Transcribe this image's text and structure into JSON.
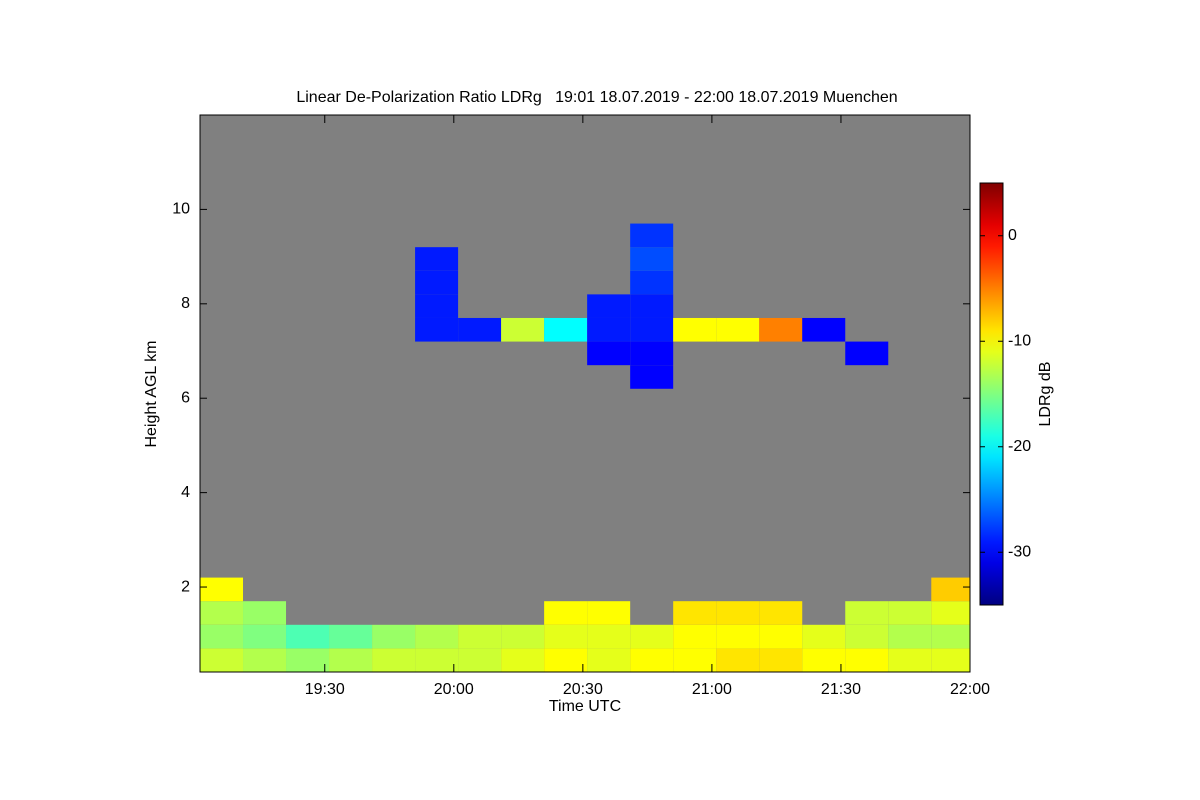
{
  "chart_data": {
    "type": "heatmap",
    "title": "Linear De-Polarization Ratio LDRg   19:01 18.07.2019 - 22:00 18.07.2019 Muenchen",
    "xlabel": "Time UTC",
    "ylabel": "Height AGL km",
    "colorbar_label": "LDRg dB",
    "colormap": "jet",
    "background": "#808080",
    "xlim": [
      "19:01",
      "22:00"
    ],
    "xticks": [
      "19:30",
      "20:00",
      "20:30",
      "21:00",
      "21:30",
      "22:00"
    ],
    "ylim": [
      0.2,
      12
    ],
    "yticks": [
      2,
      4,
      6,
      8,
      10
    ],
    "clim": [
      -35,
      5
    ],
    "cticks": [
      0,
      -10,
      -20,
      -30
    ],
    "x": [
      "19:01",
      "19:11",
      "19:21",
      "19:31",
      "19:41",
      "19:51",
      "20:01",
      "20:11",
      "20:21",
      "20:31",
      "20:41",
      "20:51",
      "21:01",
      "21:11",
      "21:21",
      "21:31",
      "21:41",
      "21:51"
    ],
    "y": [
      0.2,
      0.7,
      1.2,
      1.7,
      2.2,
      2.7,
      3.2,
      3.7,
      4.2,
      4.7,
      5.2,
      5.7,
      6.2,
      6.7,
      7.2,
      7.7,
      8.2,
      8.7,
      9.2,
      9.7,
      10.2,
      10.7,
      11.2,
      11.7
    ],
    "z": [
      [
        -12,
        -13,
        -14,
        -13,
        -12,
        -12,
        -12,
        -11,
        -10,
        -11,
        -10,
        -10,
        -9,
        -9,
        -10,
        -10,
        -11,
        -11
      ],
      [
        -14,
        -15,
        -17,
        -16,
        -14,
        -13,
        -12,
        -12,
        -11,
        -11,
        -11,
        -10,
        -10,
        -10,
        -11,
        -12,
        -13,
        -13
      ],
      [
        -13,
        -14,
        null,
        null,
        null,
        null,
        null,
        null,
        -10,
        -10,
        null,
        -9,
        -9,
        -9,
        null,
        -12,
        -12,
        -11
      ],
      [
        -10,
        null,
        null,
        null,
        null,
        null,
        null,
        null,
        null,
        null,
        null,
        null,
        null,
        null,
        null,
        null,
        null,
        -8
      ],
      [
        null,
        null,
        null,
        null,
        null,
        null,
        null,
        null,
        null,
        null,
        null,
        null,
        null,
        null,
        null,
        null,
        null,
        null
      ],
      [
        null,
        null,
        null,
        null,
        null,
        null,
        null,
        null,
        null,
        null,
        null,
        null,
        null,
        null,
        null,
        null,
        null,
        null
      ],
      [
        null,
        null,
        null,
        null,
        null,
        null,
        null,
        null,
        null,
        null,
        null,
        null,
        null,
        null,
        null,
        null,
        null,
        null
      ],
      [
        null,
        null,
        null,
        null,
        null,
        null,
        null,
        null,
        null,
        null,
        null,
        null,
        null,
        null,
        null,
        null,
        null,
        null
      ],
      [
        null,
        null,
        null,
        null,
        null,
        null,
        null,
        null,
        null,
        null,
        null,
        null,
        null,
        null,
        null,
        null,
        null,
        null
      ],
      [
        null,
        null,
        null,
        null,
        null,
        null,
        null,
        null,
        null,
        null,
        null,
        null,
        null,
        null,
        null,
        null,
        null,
        null
      ],
      [
        null,
        null,
        null,
        null,
        null,
        null,
        null,
        null,
        null,
        null,
        null,
        null,
        null,
        null,
        null,
        null,
        null,
        null
      ],
      [
        null,
        null,
        null,
        null,
        null,
        null,
        null,
        null,
        null,
        null,
        null,
        null,
        null,
        null,
        null,
        null,
        null,
        null
      ],
      [
        null,
        null,
        null,
        null,
        null,
        null,
        null,
        null,
        null,
        null,
        -30,
        null,
        null,
        null,
        null,
        null,
        null,
        null
      ],
      [
        null,
        null,
        null,
        null,
        null,
        null,
        null,
        null,
        null,
        -30,
        -30,
        null,
        null,
        null,
        null,
        -30,
        null,
        null
      ],
      [
        null,
        null,
        null,
        null,
        null,
        -29,
        -29,
        -12,
        -20,
        -29,
        -29,
        -10,
        -10,
        -5,
        -30,
        null,
        null,
        null
      ],
      [
        null,
        null,
        null,
        null,
        null,
        -29,
        null,
        null,
        null,
        -29,
        -29,
        null,
        null,
        null,
        null,
        null,
        null,
        null
      ],
      [
        null,
        null,
        null,
        null,
        null,
        -29,
        null,
        null,
        null,
        null,
        -28,
        null,
        null,
        null,
        null,
        null,
        null,
        null
      ],
      [
        null,
        null,
        null,
        null,
        null,
        -29,
        null,
        null,
        null,
        null,
        -27,
        null,
        null,
        null,
        null,
        null,
        null,
        null
      ],
      [
        null,
        null,
        null,
        null,
        null,
        null,
        null,
        null,
        null,
        null,
        -28,
        null,
        null,
        null,
        null,
        null,
        null,
        null
      ],
      [
        null,
        null,
        null,
        null,
        null,
        null,
        null,
        null,
        null,
        null,
        null,
        null,
        null,
        null,
        null,
        null,
        null,
        null
      ],
      [
        null,
        null,
        null,
        null,
        null,
        null,
        null,
        null,
        null,
        null,
        null,
        null,
        null,
        null,
        null,
        null,
        null,
        null
      ],
      [
        null,
        null,
        null,
        null,
        null,
        null,
        null,
        null,
        null,
        null,
        null,
        null,
        null,
        null,
        null,
        null,
        null,
        null
      ],
      [
        null,
        null,
        null,
        null,
        null,
        null,
        null,
        null,
        null,
        null,
        null,
        null,
        null,
        null,
        null,
        null,
        null,
        null
      ],
      [
        null,
        null,
        null,
        null,
        null,
        null,
        null,
        null,
        null,
        null,
        null,
        null,
        null,
        null,
        null,
        null,
        null,
        null
      ]
    ]
  }
}
